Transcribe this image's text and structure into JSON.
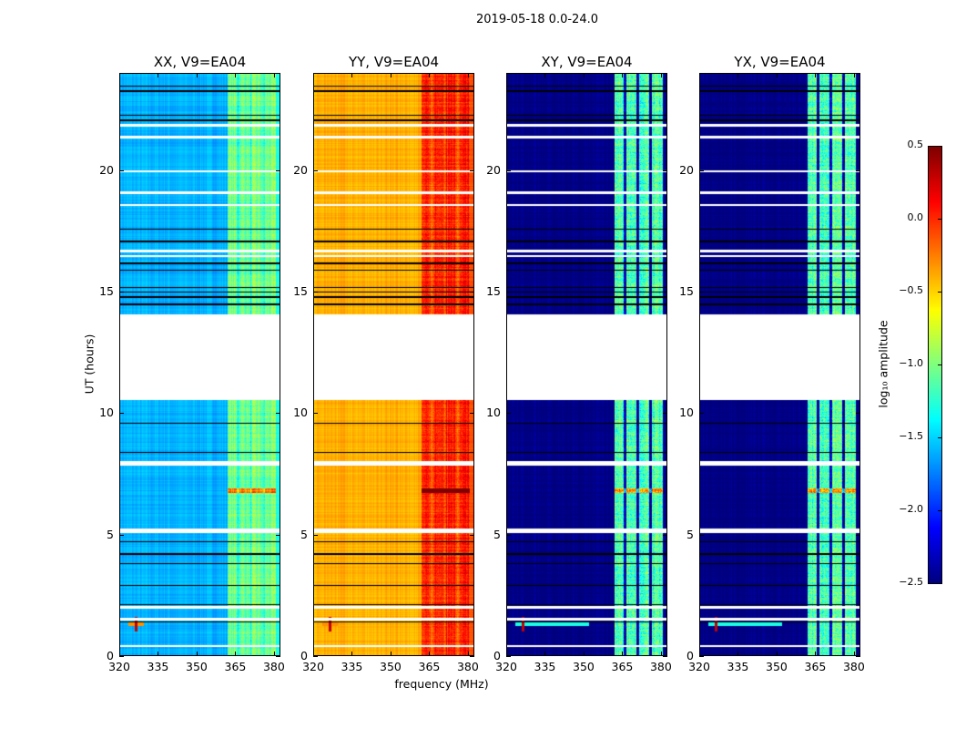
{
  "chart_data": {
    "type": "heatmap",
    "title": "2019-05-18 0.0-24.0",
    "xlabel": "frequency (MHz)",
    "ylabel": "UT (hours)",
    "xlim": [
      320,
      382.5
    ],
    "ylim": [
      0,
      24
    ],
    "xticks": [
      "320",
      "335",
      "350",
      "365",
      "380"
    ],
    "xtick_values": [
      320,
      335,
      350,
      365,
      380
    ],
    "yticks": [
      "0",
      "5",
      "10",
      "15",
      "20"
    ],
    "ytick_values": [
      0,
      5,
      10,
      15,
      20
    ],
    "panels": [
      {
        "title": "XX, V9=EA04",
        "base_low": -1.6,
        "base_high": -1.05
      },
      {
        "title": "YY, V9=EA04",
        "base_low": -0.4,
        "base_high": 0.05
      },
      {
        "title": "XY, V9=EA04",
        "base_low": -2.5,
        "base_high": -1.15
      },
      {
        "title": "YX, V9=EA04",
        "base_low": -2.5,
        "base_high": -1.15
      }
    ],
    "flagged_gap_hours": [
      10.55,
      14.1
    ],
    "flagged_rows_hours": [
      21.4,
      21.9,
      20.0,
      19.1,
      18.6,
      16.7,
      16.5,
      8.0,
      7.9,
      5.2,
      5.1,
      2.0,
      1.5,
      0.4
    ],
    "row_separator_hours": [
      23.5,
      23.3,
      22.3,
      22.1,
      17.6,
      17.1,
      16.2,
      15.9,
      15.2,
      15.0,
      14.8,
      14.5,
      9.6,
      8.4,
      4.7,
      4.2,
      3.8,
      2.9,
      2.1,
      1.4
    ],
    "rfi_band_mhz": [
      362,
      381
    ],
    "strong_rfi_hour": 6.8,
    "source_spike": {
      "freq_mhz": 326,
      "hour": 1.3
    },
    "colorbar": {
      "label": "log₁₀ amplitude",
      "range": [
        -2.5,
        0.5
      ],
      "ticks": [
        "0.5",
        "0.0",
        "−0.5",
        "−1.0",
        "−1.5",
        "−2.0",
        "−2.5"
      ],
      "tick_values": [
        0.5,
        0.0,
        -0.5,
        -1.0,
        -1.5,
        -2.0,
        -2.5
      ],
      "colormap": "jet"
    }
  }
}
